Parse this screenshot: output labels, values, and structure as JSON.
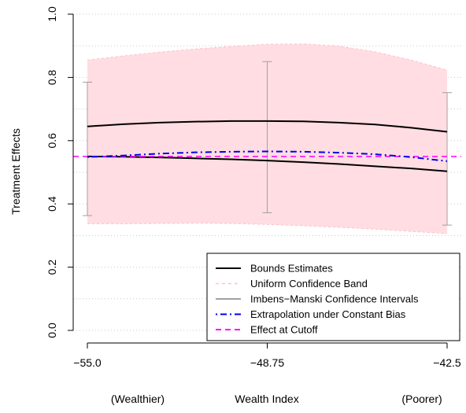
{
  "chart_data": {
    "type": "line",
    "title": "",
    "xlabel": "Wealth Index",
    "ylabel": "Treatment Effects",
    "x_extremes": {
      "left": "(Wealthier)",
      "right": "(Poorer)"
    },
    "xlim": [
      -55.0,
      -42.5
    ],
    "ylim": [
      0.0,
      1.0
    ],
    "x_ticks": [
      {
        "value": -55.0,
        "label": "−55.0"
      },
      {
        "value": -48.75,
        "label": "−48.75"
      },
      {
        "value": -42.5,
        "label": "−42.5"
      }
    ],
    "y_ticks": [
      {
        "value": 0.0,
        "label": "0.0"
      },
      {
        "value": 0.2,
        "label": "0.2"
      },
      {
        "value": 0.4,
        "label": "0.4"
      },
      {
        "value": 0.6,
        "label": "0.6"
      },
      {
        "value": 0.8,
        "label": "0.8"
      },
      {
        "value": 1.0,
        "label": "1.0"
      }
    ],
    "grid": {
      "horizontal": true,
      "vertical": false
    },
    "legend_position": "bottom-right",
    "x": [
      -55.0,
      -53.75,
      -52.5,
      -51.25,
      -50.0,
      -48.75,
      -47.5,
      -46.25,
      -45.0,
      -43.75,
      -42.5
    ],
    "series": [
      {
        "name": "Bounds Estimates",
        "style": "solid",
        "color": "#000000",
        "upper": [
          0.645,
          0.652,
          0.657,
          0.66,
          0.662,
          0.662,
          0.661,
          0.657,
          0.651,
          0.641,
          0.628
        ],
        "lower": [
          0.55,
          0.549,
          0.547,
          0.544,
          0.541,
          0.537,
          0.532,
          0.526,
          0.519,
          0.512,
          0.503
        ]
      },
      {
        "name": "Uniform Confidence Band",
        "style": "dashed",
        "color": "#ffc0cb",
        "fill": "#ffdde2",
        "upper": [
          0.855,
          0.868,
          0.88,
          0.89,
          0.898,
          0.905,
          0.906,
          0.899,
          0.881,
          0.855,
          0.823
        ],
        "lower": [
          0.337,
          0.337,
          0.338,
          0.339,
          0.338,
          0.335,
          0.331,
          0.326,
          0.32,
          0.313,
          0.306
        ]
      },
      {
        "name": "Imbens−Manski Confidence Intervals",
        "style": "errorbar",
        "color": "#a0a0a0",
        "points": [
          {
            "x": -55.0,
            "low": 0.363,
            "high": 0.785
          },
          {
            "x": -48.75,
            "low": 0.372,
            "high": 0.85
          },
          {
            "x": -42.5,
            "low": 0.333,
            "high": 0.752
          }
        ]
      },
      {
        "name": "Extrapolation under Constant Bias",
        "style": "dotdash",
        "color": "#0000ee",
        "values": [
          0.548,
          0.553,
          0.559,
          0.563,
          0.565,
          0.566,
          0.565,
          0.562,
          0.557,
          0.548,
          0.535
        ]
      },
      {
        "name": "Effect at Cutoff",
        "style": "dashed",
        "color": "#ff00ff",
        "value": 0.55
      }
    ]
  }
}
